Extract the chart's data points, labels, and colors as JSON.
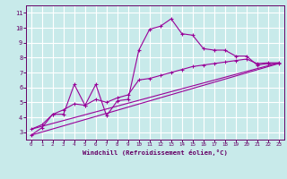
{
  "bg_color": "#c8eaea",
  "grid_color": "#ffffff",
  "line_color": "#990099",
  "marker_color": "#990099",
  "axis_color": "#660066",
  "label_color": "#660066",
  "xlabel": "Windchill (Refroidissement éolien,°C)",
  "xlim": [
    -0.5,
    23.5
  ],
  "ylim": [
    2.5,
    11.5
  ],
  "yticks": [
    3,
    4,
    5,
    6,
    7,
    8,
    9,
    10,
    11
  ],
  "xticks": [
    0,
    1,
    2,
    3,
    4,
    5,
    6,
    7,
    8,
    9,
    10,
    11,
    12,
    13,
    14,
    15,
    16,
    17,
    18,
    19,
    20,
    21,
    22,
    23
  ],
  "series1_x": [
    0,
    1,
    2,
    3,
    4,
    5,
    6,
    7,
    8,
    9,
    10,
    11,
    12,
    13,
    14,
    15,
    16,
    17,
    18,
    19,
    20,
    21,
    22,
    23
  ],
  "series1_y": [
    2.8,
    3.3,
    4.2,
    4.2,
    6.2,
    4.8,
    6.2,
    4.1,
    5.1,
    5.2,
    8.5,
    9.9,
    10.1,
    10.6,
    9.6,
    9.5,
    8.6,
    8.5,
    8.5,
    8.1,
    8.1,
    7.5,
    7.6,
    7.6
  ],
  "series2_x": [
    0,
    1,
    2,
    3,
    4,
    5,
    6,
    7,
    8,
    9,
    10,
    11,
    12,
    13,
    14,
    15,
    16,
    17,
    18,
    19,
    20,
    21,
    22,
    23
  ],
  "series2_y": [
    3.2,
    3.5,
    4.2,
    4.5,
    4.9,
    4.8,
    5.2,
    5.0,
    5.3,
    5.5,
    6.5,
    6.6,
    6.8,
    7.0,
    7.2,
    7.4,
    7.5,
    7.6,
    7.7,
    7.8,
    7.9,
    7.6,
    7.65,
    7.65
  ],
  "line3_x0": 0,
  "line3_x1": 23,
  "line3_y0": 2.8,
  "line3_y1": 7.6,
  "line4_x0": 0,
  "line4_x1": 23,
  "line4_y0": 3.2,
  "line4_y1": 7.65
}
